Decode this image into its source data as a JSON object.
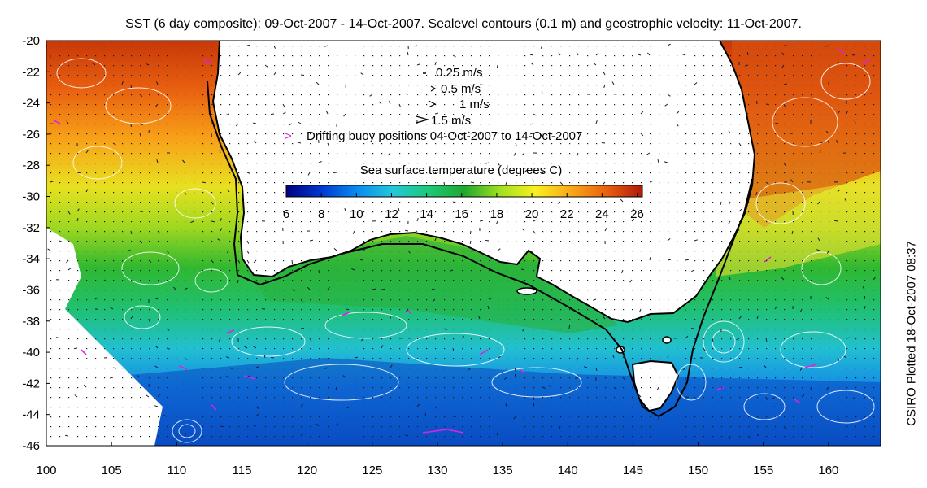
{
  "title": "SST (6 day composite): 09-Oct-2007 - 14-Oct-2007. Sealevel contours (0.1 m) and geostrophic velocity: 11-Oct-2007.",
  "side_label": "CSIRO Plotted 18-Oct-2007 08:37",
  "legend": {
    "velocity_keys": [
      "0.25 m/s",
      "0.5 m/s",
      "1 m/s",
      "1.5 m/s"
    ],
    "buoy_label": "Drifting buoy positions 04-Oct-2007 to 14-Oct-2007",
    "colorbar_title": "Sea surface temperature (degrees C)",
    "colorbar_ticks": [
      "6",
      "8",
      "10",
      "12",
      "14",
      "16",
      "18",
      "20",
      "22",
      "24",
      "26"
    ],
    "colorbar_min": 6,
    "colorbar_max": 26.3,
    "colormap": [
      "#000080",
      "#0038d0",
      "#0a8cf0",
      "#22c8d8",
      "#1ec878",
      "#1ea830",
      "#a0e020",
      "#f8f020",
      "#f8a818",
      "#e86010",
      "#b01808"
    ]
  },
  "map": {
    "lon_range": [
      100,
      164
    ],
    "lat_range": [
      -46,
      -20
    ],
    "lon_ticks": [
      "100",
      "105",
      "110",
      "115",
      "120",
      "125",
      "130",
      "135",
      "140",
      "145",
      "150",
      "155",
      "160"
    ],
    "lat_ticks": [
      "-20",
      "-22",
      "-24",
      "-26",
      "-28",
      "-30",
      "-32",
      "-34",
      "-36",
      "-38",
      "-40",
      "-42",
      "-44",
      "-46"
    ],
    "colors": {
      "land": "#ffffff",
      "coast": "#000000",
      "contour": "#ffffff",
      "buoy": "#e020e0"
    }
  }
}
